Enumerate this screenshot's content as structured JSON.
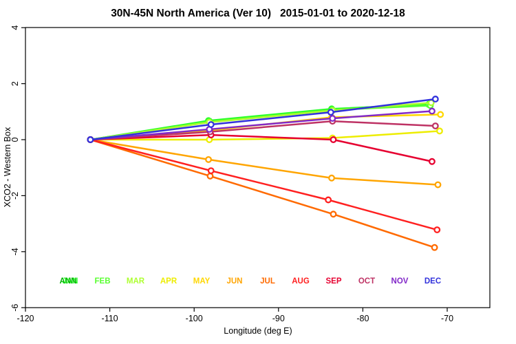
{
  "title": "30N-45N North America (Ver 10)   2015-01-01 to 2020-12-18",
  "chart_data": {
    "type": "line",
    "title": "30N-45N North America (Ver 10)   2015-01-01 to 2020-12-18",
    "xlabel": "Longitude (deg E)",
    "ylabel": "XCO2 - Western Box",
    "xlim": [
      -120,
      -65
    ],
    "ylim": [
      -6,
      4
    ],
    "x_ticks": [
      -120,
      -110,
      -100,
      -90,
      -80,
      -70
    ],
    "x_tick_labels": [
      "-120",
      "-110",
      "-100",
      "-90",
      "-80",
      "-70"
    ],
    "y_ticks": [
      4,
      2,
      0,
      -2,
      -4,
      -6
    ],
    "y_tick_labels": [
      "4",
      "2",
      "0",
      "-2",
      "-4",
      "-6"
    ],
    "grid": false,
    "marker": "open-circle",
    "legend_position": "bottom-inside-row",
    "series": [
      {
        "name": "ANN",
        "color": "#00B400",
        "x": [
          -112.3,
          -98.2,
          -83.7,
          -72.1
        ],
        "y": [
          0,
          0.66,
          1.08,
          1.28
        ]
      },
      {
        "name": "JAN",
        "color": "#28FF28",
        "x": [
          -112.3,
          -98.3,
          -83.7,
          -72.2
        ],
        "y": [
          0,
          0.68,
          1.1,
          1.26
        ]
      },
      {
        "name": "FEB",
        "color": "#5AFF32",
        "x": [
          -112.3,
          -98.2,
          -83.6,
          -72.0
        ],
        "y": [
          0,
          0.64,
          1.06,
          1.22
        ]
      },
      {
        "name": "MAR",
        "color": "#ADFF2F",
        "x": [
          -112.3,
          -98.2,
          -83.6,
          -71.9
        ],
        "y": [
          0,
          0.62,
          1.04,
          1.32
        ]
      },
      {
        "name": "APR",
        "color": "#EDED00",
        "x": [
          -112.3,
          -98.2,
          -83.6,
          -70.9
        ],
        "y": [
          0,
          0.0,
          0.06,
          0.31
        ]
      },
      {
        "name": "MAY",
        "color": "#FFD700",
        "x": [
          -112.3,
          -98.2,
          -83.7,
          -70.8
        ],
        "y": [
          0,
          0.33,
          0.8,
          0.9
        ]
      },
      {
        "name": "JUN",
        "color": "#FFA500",
        "x": [
          -112.3,
          -98.3,
          -83.7,
          -71.1
        ],
        "y": [
          0,
          -0.71,
          -1.37,
          -1.61
        ]
      },
      {
        "name": "JUL",
        "color": "#FF6A00",
        "x": [
          -112.3,
          -98.1,
          -83.5,
          -71.5
        ],
        "y": [
          0,
          -1.3,
          -2.66,
          -3.85
        ]
      },
      {
        "name": "AUG",
        "color": "#FF2020",
        "x": [
          -112.3,
          -98.0,
          -84.1,
          -71.2
        ],
        "y": [
          0,
          -1.11,
          -2.15,
          -3.22
        ]
      },
      {
        "name": "SEP",
        "color": "#E60030",
        "x": [
          -112.3,
          -98.0,
          -83.5,
          -71.8
        ],
        "y": [
          0,
          0.17,
          0.0,
          -0.78
        ]
      },
      {
        "name": "OCT",
        "color": "#BE3264",
        "x": [
          -112.3,
          -98.1,
          -83.6,
          -71.4
        ],
        "y": [
          0,
          0.28,
          0.66,
          0.49
        ]
      },
      {
        "name": "NOV",
        "color": "#8228C8",
        "x": [
          -112.3,
          -98.2,
          -83.6,
          -71.8
        ],
        "y": [
          0,
          0.37,
          0.76,
          1.02
        ]
      },
      {
        "name": "DEC",
        "color": "#3232DC",
        "x": [
          -112.3,
          -98.0,
          -83.8,
          -71.4
        ],
        "y": [
          0,
          0.54,
          0.98,
          1.45
        ]
      }
    ],
    "legend": [
      {
        "label": "JAN",
        "color": "#28FF28",
        "slot": 0,
        "dx": 1
      },
      {
        "label": "ANN",
        "color": "#00B400",
        "slot": 0,
        "dx": -2
      },
      {
        "label": "FEB",
        "color": "#5AFF32",
        "slot": 1,
        "dx": 0
      },
      {
        "label": "MAR",
        "color": "#ADFF2F",
        "slot": 2,
        "dx": 0
      },
      {
        "label": "APR",
        "color": "#EDED00",
        "slot": 3,
        "dx": 0
      },
      {
        "label": "MAY",
        "color": "#FFD700",
        "slot": 4,
        "dx": 0
      },
      {
        "label": "JUN",
        "color": "#FFA500",
        "slot": 5,
        "dx": 0
      },
      {
        "label": "JUL",
        "color": "#FF6A00",
        "slot": 6,
        "dx": 0
      },
      {
        "label": "AUG",
        "color": "#FF2020",
        "slot": 7,
        "dx": 0
      },
      {
        "label": "SEP",
        "color": "#E60030",
        "slot": 8,
        "dx": 0
      },
      {
        "label": "OCT",
        "color": "#BE3264",
        "slot": 9,
        "dx": 0
      },
      {
        "label": "NOV",
        "color": "#8228C8",
        "slot": 10,
        "dx": 0
      },
      {
        "label": "DEC",
        "color": "#3232DC",
        "slot": 11,
        "dx": 0
      }
    ]
  }
}
